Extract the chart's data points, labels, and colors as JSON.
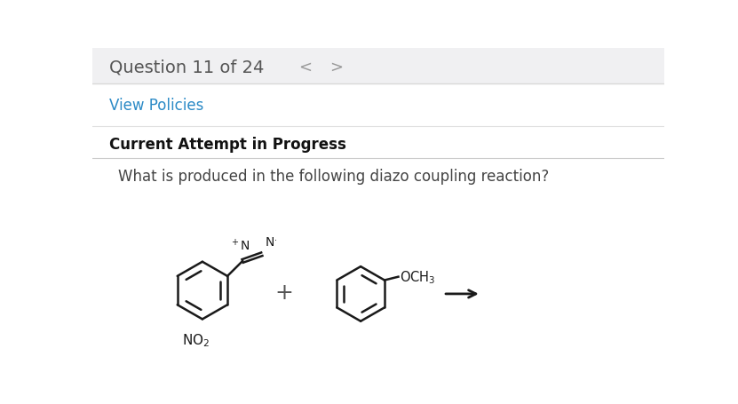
{
  "bg_top": "#f0f0f2",
  "bg_white": "#ffffff",
  "question_text": "Question 11 of 24",
  "question_color": "#555555",
  "nav_left": "<",
  "nav_right": ">",
  "nav_color": "#999999",
  "policies_text": "View Policies",
  "policies_color": "#2b8ac6",
  "attempt_text": "Current Attempt in Progress",
  "attempt_color": "#111111",
  "reaction_text": "What is produced in the following diazo coupling reaction?",
  "reaction_color": "#444444",
  "struct_color": "#1a1a1a",
  "plus_color": "#555555",
  "arrow_color": "#1a1a1a",
  "fig_w": 8.31,
  "fig_h": 4.56,
  "dpi": 100
}
